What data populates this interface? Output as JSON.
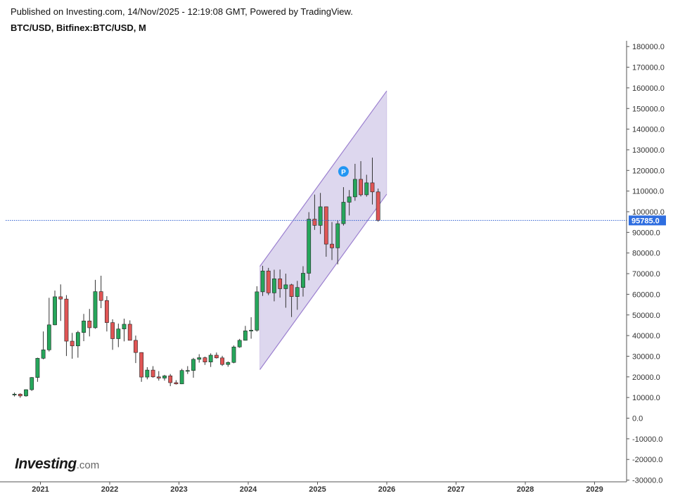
{
  "header": {
    "published": "Published on Investing.com, 14/Nov/2025 - 12:19:08 GMT, Powered by TradingView.",
    "symbol": "BTC/USD, Bitfinex:BTC/USD, M"
  },
  "brand": {
    "name": "Investing",
    "suffix": ".com"
  },
  "colors": {
    "up": "#26a65b",
    "down": "#e05555",
    "channel_fill": "#d9d3ec",
    "channel_line": "#9b7fcf",
    "price_line": "#2f5fd0",
    "price_label_bg": "#2f6ee0",
    "marker": "#2196f3"
  },
  "chart_data": {
    "type": "candlestick",
    "interval": "M",
    "current_price": 95785.0,
    "current_price_label": "95785.0",
    "y_axis": {
      "range": [
        -30000,
        185000
      ],
      "tick_labels": [
        "180000.0",
        "170000.0",
        "160000.0",
        "150000.0",
        "140000.0",
        "130000.0",
        "120000.0",
        "110000.0",
        "100000.0",
        "90000.0",
        "80000.0",
        "70000.0",
        "60000.0",
        "50000.0",
        "40000.0",
        "30000.0",
        "20000.0",
        "10000.0",
        "0.0",
        "-10000.0",
        "-20000.0",
        "-30000.0"
      ],
      "tick_values": [
        180000,
        170000,
        160000,
        150000,
        140000,
        130000,
        120000,
        110000,
        100000,
        90000,
        80000,
        70000,
        60000,
        50000,
        40000,
        30000,
        20000,
        10000,
        0,
        -10000,
        -20000,
        -30000
      ]
    },
    "x_axis": {
      "tick_labels": [
        "2021",
        "2022",
        "2023",
        "2024",
        "2025",
        "2026",
        "2027",
        "2028",
        "2029"
      ]
    },
    "candles": [
      {
        "t": "2020-08",
        "o": 11300,
        "h": 12400,
        "l": 10500,
        "c": 11650
      },
      {
        "t": "2020-09",
        "o": 11650,
        "h": 12050,
        "l": 9900,
        "c": 10780
      },
      {
        "t": "2020-10",
        "o": 10780,
        "h": 14000,
        "l": 10400,
        "c": 13800
      },
      {
        "t": "2020-11",
        "o": 13800,
        "h": 19900,
        "l": 13200,
        "c": 19700
      },
      {
        "t": "2020-12",
        "o": 19700,
        "h": 29300,
        "l": 17600,
        "c": 29000
      },
      {
        "t": "2021-01",
        "o": 29000,
        "h": 42000,
        "l": 28500,
        "c": 33100
      },
      {
        "t": "2021-02",
        "o": 33100,
        "h": 58300,
        "l": 32300,
        "c": 45200
      },
      {
        "t": "2021-03",
        "o": 45200,
        "h": 61800,
        "l": 45000,
        "c": 58800
      },
      {
        "t": "2021-04",
        "o": 58800,
        "h": 64800,
        "l": 47100,
        "c": 57700
      },
      {
        "t": "2021-05",
        "o": 57700,
        "h": 59600,
        "l": 30100,
        "c": 37300
      },
      {
        "t": "2021-06",
        "o": 37300,
        "h": 41300,
        "l": 28800,
        "c": 35000
      },
      {
        "t": "2021-07",
        "o": 35000,
        "h": 42300,
        "l": 29300,
        "c": 41500
      },
      {
        "t": "2021-08",
        "o": 41500,
        "h": 50500,
        "l": 37300,
        "c": 47100
      },
      {
        "t": "2021-09",
        "o": 47100,
        "h": 52900,
        "l": 39600,
        "c": 43800
      },
      {
        "t": "2021-10",
        "o": 43800,
        "h": 67000,
        "l": 43300,
        "c": 61300
      },
      {
        "t": "2021-11",
        "o": 61300,
        "h": 69000,
        "l": 53300,
        "c": 57000
      },
      {
        "t": "2021-12",
        "o": 57000,
        "h": 59100,
        "l": 42000,
        "c": 46300
      },
      {
        "t": "2022-01",
        "o": 46300,
        "h": 47900,
        "l": 33100,
        "c": 38500
      },
      {
        "t": "2022-02",
        "o": 38500,
        "h": 45800,
        "l": 34400,
        "c": 43200
      },
      {
        "t": "2022-03",
        "o": 43200,
        "h": 48200,
        "l": 37200,
        "c": 45500
      },
      {
        "t": "2022-04",
        "o": 45500,
        "h": 47400,
        "l": 37700,
        "c": 37700
      },
      {
        "t": "2022-05",
        "o": 37700,
        "h": 40000,
        "l": 26700,
        "c": 31800
      },
      {
        "t": "2022-06",
        "o": 31800,
        "h": 31900,
        "l": 17600,
        "c": 19900
      },
      {
        "t": "2022-07",
        "o": 19900,
        "h": 24700,
        "l": 18800,
        "c": 23300
      },
      {
        "t": "2022-08",
        "o": 23300,
        "h": 25200,
        "l": 19600,
        "c": 20000
      },
      {
        "t": "2022-09",
        "o": 20000,
        "h": 22800,
        "l": 18200,
        "c": 19400
      },
      {
        "t": "2022-10",
        "o": 19400,
        "h": 21000,
        "l": 18200,
        "c": 20500
      },
      {
        "t": "2022-11",
        "o": 20500,
        "h": 21400,
        "l": 15500,
        "c": 17200
      },
      {
        "t": "2022-12",
        "o": 17200,
        "h": 18400,
        "l": 16300,
        "c": 16600
      },
      {
        "t": "2023-01",
        "o": 16600,
        "h": 23900,
        "l": 16500,
        "c": 23100
      },
      {
        "t": "2023-02",
        "o": 23100,
        "h": 25200,
        "l": 21400,
        "c": 23100
      },
      {
        "t": "2023-03",
        "o": 23100,
        "h": 29200,
        "l": 19600,
        "c": 28500
      },
      {
        "t": "2023-04",
        "o": 28500,
        "h": 31000,
        "l": 26900,
        "c": 29300
      },
      {
        "t": "2023-05",
        "o": 29300,
        "h": 29800,
        "l": 25800,
        "c": 27200
      },
      {
        "t": "2023-06",
        "o": 27200,
        "h": 31400,
        "l": 24800,
        "c": 30500
      },
      {
        "t": "2023-07",
        "o": 30500,
        "h": 31800,
        "l": 28900,
        "c": 29200
      },
      {
        "t": "2023-08",
        "o": 29200,
        "h": 30200,
        "l": 25300,
        "c": 26000
      },
      {
        "t": "2023-09",
        "o": 26000,
        "h": 27500,
        "l": 24900,
        "c": 27000
      },
      {
        "t": "2023-10",
        "o": 27000,
        "h": 35200,
        "l": 26600,
        "c": 34500
      },
      {
        "t": "2023-11",
        "o": 34500,
        "h": 38400,
        "l": 34100,
        "c": 37700
      },
      {
        "t": "2023-12",
        "o": 37700,
        "h": 44700,
        "l": 37600,
        "c": 42300
      },
      {
        "t": "2024-01",
        "o": 42300,
        "h": 48900,
        "l": 38500,
        "c": 42600
      },
      {
        "t": "2024-02",
        "o": 42600,
        "h": 63900,
        "l": 41900,
        "c": 61200
      },
      {
        "t": "2024-03",
        "o": 61200,
        "h": 73800,
        "l": 59200,
        "c": 71300
      },
      {
        "t": "2024-04",
        "o": 71300,
        "h": 72800,
        "l": 59600,
        "c": 60700
      },
      {
        "t": "2024-05",
        "o": 60700,
        "h": 71900,
        "l": 56600,
        "c": 67500
      },
      {
        "t": "2024-06",
        "o": 67500,
        "h": 72000,
        "l": 58400,
        "c": 62700
      },
      {
        "t": "2024-07",
        "o": 62700,
        "h": 70000,
        "l": 53500,
        "c": 64600
      },
      {
        "t": "2024-08",
        "o": 64600,
        "h": 65100,
        "l": 49000,
        "c": 58900
      },
      {
        "t": "2024-09",
        "o": 58900,
        "h": 66500,
        "l": 52500,
        "c": 63300
      },
      {
        "t": "2024-10",
        "o": 63300,
        "h": 73600,
        "l": 58900,
        "c": 70200
      },
      {
        "t": "2024-11",
        "o": 70200,
        "h": 99800,
        "l": 66800,
        "c": 96400
      },
      {
        "t": "2024-12",
        "o": 96400,
        "h": 108300,
        "l": 91200,
        "c": 93400
      },
      {
        "t": "2025-01",
        "o": 93400,
        "h": 109100,
        "l": 89200,
        "c": 102400
      },
      {
        "t": "2025-02",
        "o": 102400,
        "h": 102500,
        "l": 78200,
        "c": 84300
      },
      {
        "t": "2025-03",
        "o": 84300,
        "h": 95000,
        "l": 76600,
        "c": 82500
      },
      {
        "t": "2025-04",
        "o": 82500,
        "h": 95800,
        "l": 74500,
        "c": 94200
      },
      {
        "t": "2025-05",
        "o": 94200,
        "h": 111900,
        "l": 93300,
        "c": 104600
      },
      {
        "t": "2025-06",
        "o": 104600,
        "h": 110500,
        "l": 98200,
        "c": 107200
      },
      {
        "t": "2025-07",
        "o": 107200,
        "h": 123200,
        "l": 105300,
        "c": 115700
      },
      {
        "t": "2025-08",
        "o": 115700,
        "h": 124500,
        "l": 107400,
        "c": 108200
      },
      {
        "t": "2025-09",
        "o": 108200,
        "h": 117900,
        "l": 107300,
        "c": 114000
      },
      {
        "t": "2025-10",
        "o": 114000,
        "h": 126200,
        "l": 103500,
        "c": 109600
      },
      {
        "t": "2025-11",
        "o": 109600,
        "h": 111200,
        "l": 95200,
        "c": 95785
      }
    ],
    "channel": {
      "upper": [
        [
          "2024-03",
          73500
        ],
        [
          "2025-12",
          158500
        ]
      ],
      "lower": [
        [
          "2024-03",
          23500
        ],
        [
          "2025-12",
          108500
        ]
      ]
    },
    "marker": {
      "label": "P",
      "t": "2025-05",
      "value": 119500
    }
  }
}
